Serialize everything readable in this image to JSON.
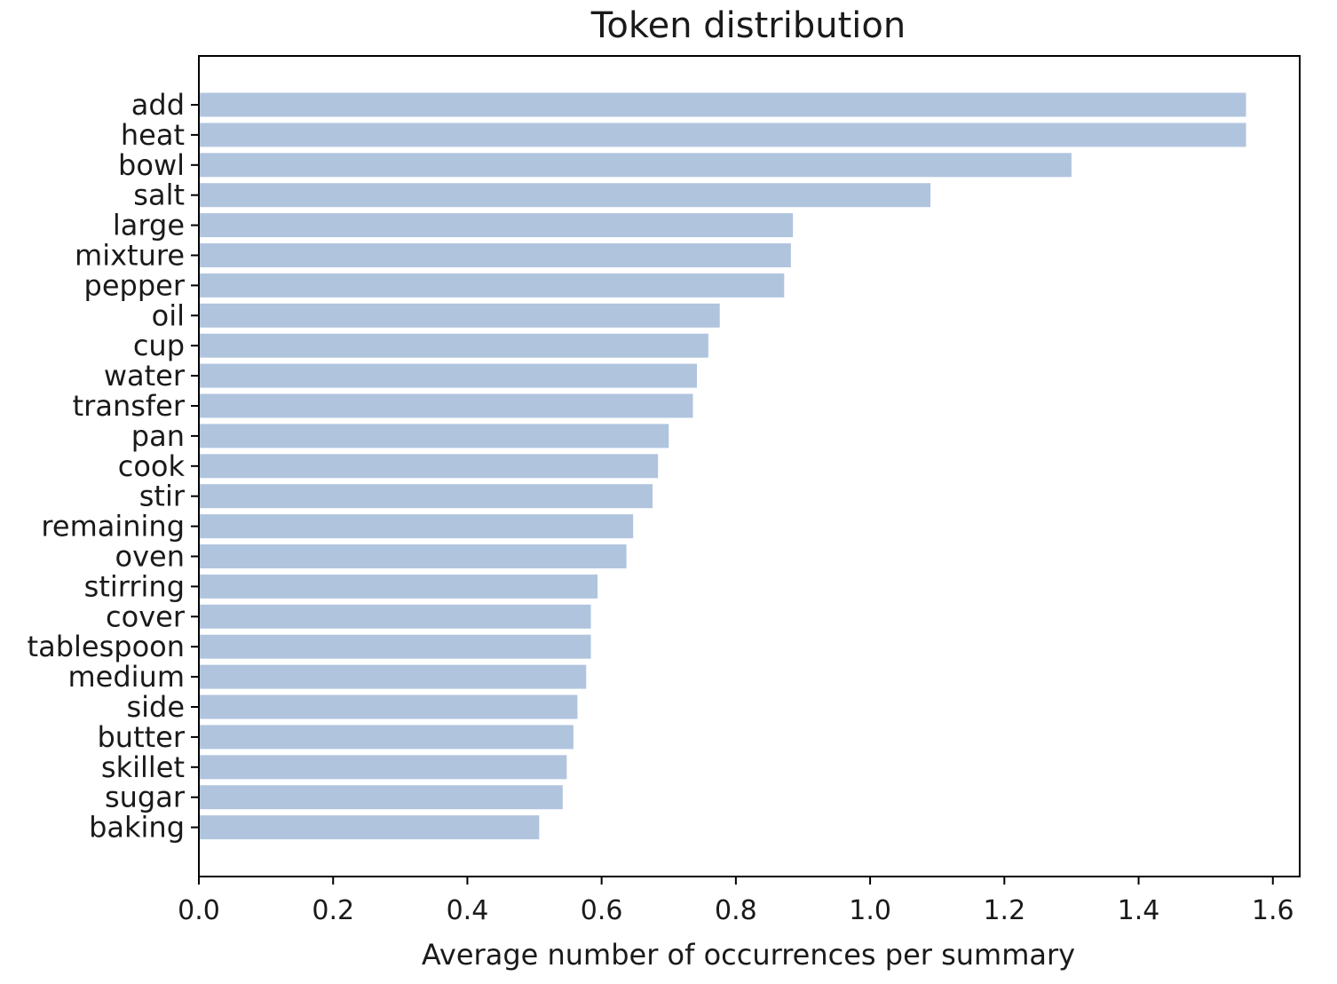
{
  "chart_data": {
    "type": "bar",
    "orientation": "horizontal",
    "title": "Token distribution",
    "xlabel": "Average number of occurrences per summary",
    "ylabel": "",
    "xlim": [
      0,
      1.64
    ],
    "xticks": [
      "0.0",
      "0.2",
      "0.4",
      "0.6",
      "0.8",
      "1.0",
      "1.2",
      "1.4",
      "1.6"
    ],
    "grid": false,
    "bar_color": "#b0c4de",
    "categories": [
      "add",
      "heat",
      "bowl",
      "salt",
      "large",
      "mixture",
      "pepper",
      "oil",
      "cup",
      "water",
      "transfer",
      "pan",
      "cook",
      "stir",
      "remaining",
      "oven",
      "stirring",
      "cover",
      "tablespoon",
      "medium",
      "side",
      "butter",
      "skillet",
      "sugar",
      "baking"
    ],
    "values": [
      1.56,
      1.56,
      1.3,
      1.09,
      0.885,
      0.882,
      0.872,
      0.776,
      0.759,
      0.742,
      0.736,
      0.7,
      0.684,
      0.676,
      0.647,
      0.637,
      0.594,
      0.584,
      0.584,
      0.577,
      0.564,
      0.558,
      0.548,
      0.542,
      0.507
    ]
  }
}
